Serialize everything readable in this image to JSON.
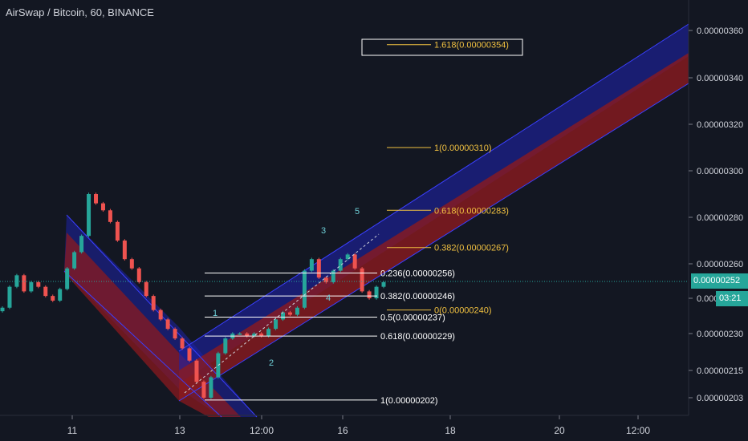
{
  "header": {
    "title": "AirSwap / Bitcoin, 60, BINANCE"
  },
  "price_axis": {
    "ticks": [
      "0.00000360",
      "0.00000340",
      "0.00000320",
      "0.00000300",
      "0.00000280",
      "0.00000260",
      "0.00000245",
      "0.00000230",
      "0.00000215",
      "0.00000203"
    ],
    "current_price": "0.00000252",
    "time_to_close": "03:21",
    "partial_price": "0.0000"
  },
  "time_axis": {
    "ticks": [
      "11",
      "13",
      "12:00",
      "16",
      "18",
      "20",
      "12:00"
    ]
  },
  "colors": {
    "background": "#131722",
    "up": "#26a69a",
    "down": "#ef5350",
    "channel_blue": "#1e22a6",
    "channel_red": "#8b1a1f",
    "fib_retrace": "#ffffff",
    "fib_extension": "#f0c040",
    "wave_label": "#6fd0d8"
  },
  "chart_data": {
    "type": "candlestick",
    "title": "AirSwap / Bitcoin, 60, BINANCE",
    "ylim": [
      2e-06,
      3.65e-06
    ],
    "current_price_line": 2.52e-06,
    "fib_retracement": [
      {
        "label": "0.236(0.00000256)",
        "value": 2.56e-06
      },
      {
        "label": "0.382(0.00000246)",
        "value": 2.46e-06
      },
      {
        "label": "0.5(0.00000237)",
        "value": 2.37e-06
      },
      {
        "label": "0.618(0.00000229)",
        "value": 2.29e-06
      },
      {
        "label": "1(0.00000202)",
        "value": 2.02e-06
      }
    ],
    "fib_extension": [
      {
        "label": "1.618(0.00000354)",
        "value": 3.54e-06
      },
      {
        "label": "1(0.00000310)",
        "value": 3.1e-06
      },
      {
        "label": "0.618(0.00000283)",
        "value": 2.83e-06
      },
      {
        "label": "0.382(0.00000267)",
        "value": 2.67e-06
      },
      {
        "label": "0(0.00000240)",
        "value": 2.4e-06
      }
    ],
    "wave_labels": [
      "1",
      "2",
      "3",
      "4",
      "5"
    ],
    "candles_approx_close": [
      2.41e-06,
      2.5e-06,
      2.55e-06,
      2.48e-06,
      2.52e-06,
      2.5e-06,
      2.46e-06,
      2.44e-06,
      2.49e-06,
      2.58e-06,
      2.65e-06,
      2.72e-06,
      2.9e-06,
      2.86e-06,
      2.83e-06,
      2.78e-06,
      2.7e-06,
      2.62e-06,
      2.58e-06,
      2.52e-06,
      2.46e-06,
      2.4e-06,
      2.36e-06,
      2.32e-06,
      2.28e-06,
      2.24e-06,
      2.19e-06,
      2.1e-06,
      2.03e-06,
      2.12e-06,
      2.22e-06,
      2.28e-06,
      2.3e-06,
      2.3e-06,
      2.29e-06,
      2.3e-06,
      2.29e-06,
      2.32e-06,
      2.36e-06,
      2.39e-06,
      2.38e-06,
      2.41e-06,
      2.57e-06,
      2.62e-06,
      2.54e-06,
      2.52e-06,
      2.57e-06,
      2.62e-06,
      2.64e-06,
      2.58e-06,
      2.48e-06,
      2.45e-06,
      2.5e-06,
      2.52e-06
    ]
  }
}
